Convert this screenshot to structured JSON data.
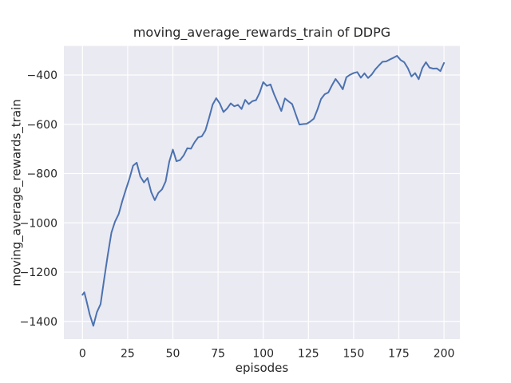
{
  "figure": {
    "title": "moving_average_rewards_train of DDPG",
    "xlabel": "episodes",
    "ylabel": "moving_average_rewards_train"
  },
  "colors": {
    "figure_background": "#ffffff",
    "axes_background": "#eaeaf2",
    "grid": "#ffffff",
    "line": "#4c72b0",
    "text": "#262626"
  },
  "chart_data": {
    "type": "line",
    "title": "moving_average_rewards_train of DDPG",
    "xlabel": "episodes",
    "ylabel": "moving_average_rewards_train",
    "grid": true,
    "legend": false,
    "xlim": [
      -10.3,
      208.8
    ],
    "ylim": [
      -1472,
      -282
    ],
    "x_ticks": [
      0,
      25,
      50,
      75,
      100,
      125,
      150,
      175,
      200
    ],
    "x_tick_labels": [
      "0",
      "25",
      "50",
      "75",
      "100",
      "125",
      "150",
      "175",
      "200"
    ],
    "y_ticks": [
      -400,
      -600,
      -800,
      -1000,
      -1200,
      -1400
    ],
    "y_tick_labels": [
      "−400",
      "−600",
      "−800",
      "−1000",
      "−1200",
      "−1400"
    ],
    "series": [
      {
        "name": "moving_average_rewards_train",
        "color": "#4c72b0",
        "x": [
          0,
          1,
          2,
          4,
          6,
          8,
          10,
          12,
          14,
          16,
          18,
          20,
          22,
          24,
          26,
          28,
          30,
          32,
          34,
          36,
          38,
          40,
          42,
          44,
          46,
          48,
          50,
          52,
          54,
          56,
          58,
          60,
          62,
          64,
          66,
          68,
          70,
          72,
          74,
          76,
          78,
          80,
          82,
          84,
          86,
          88,
          90,
          92,
          94,
          96,
          98,
          100,
          102,
          104,
          106,
          108,
          110,
          112,
          114,
          116,
          118,
          120,
          122,
          124,
          126,
          128,
          130,
          132,
          134,
          136,
          138,
          140,
          142,
          144,
          146,
          148,
          150,
          152,
          154,
          156,
          158,
          160,
          162,
          164,
          166,
          168,
          170,
          172,
          174,
          176,
          178,
          180,
          182,
          184,
          186,
          188,
          190,
          192,
          194,
          196,
          198,
          200
        ],
        "y": [
          -1292,
          -1282,
          -1310,
          -1372,
          -1418,
          -1362,
          -1330,
          -1228,
          -1130,
          -1040,
          -995,
          -965,
          -912,
          -865,
          -820,
          -768,
          -756,
          -812,
          -836,
          -818,
          -875,
          -908,
          -878,
          -864,
          -832,
          -752,
          -703,
          -750,
          -745,
          -726,
          -697,
          -699,
          -673,
          -653,
          -649,
          -625,
          -575,
          -520,
          -494,
          -516,
          -550,
          -536,
          -515,
          -527,
          -521,
          -538,
          -501,
          -518,
          -506,
          -502,
          -472,
          -429,
          -444,
          -438,
          -478,
          -512,
          -546,
          -495,
          -507,
          -518,
          -560,
          -601,
          -599,
          -598,
          -589,
          -577,
          -540,
          -497,
          -478,
          -471,
          -442,
          -416,
          -435,
          -458,
          -409,
          -399,
          -392,
          -388,
          -411,
          -393,
          -412,
          -398,
          -377,
          -361,
          -346,
          -345,
          -337,
          -330,
          -322,
          -339,
          -348,
          -372,
          -406,
          -392,
          -417,
          -372,
          -348,
          -370,
          -374,
          -373,
          -384,
          -351
        ]
      }
    ]
  }
}
